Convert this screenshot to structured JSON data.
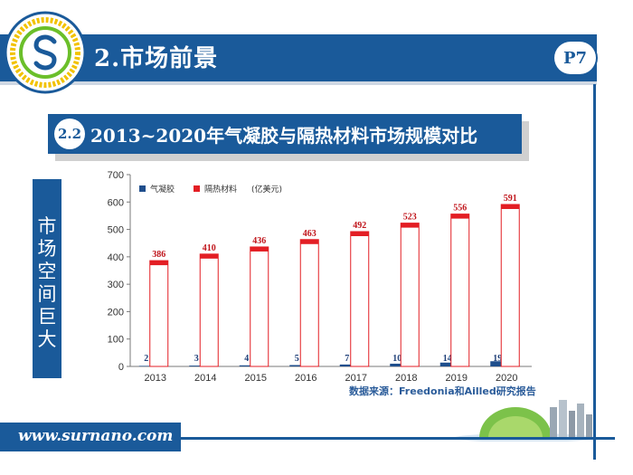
{
  "header": {
    "title": "2.市场前景",
    "page": "P7"
  },
  "subtitle": {
    "badge": "2.2",
    "text": "2013~2020年气凝胶与隔热材料市场规模对比"
  },
  "side_label": [
    "市",
    "场",
    "空",
    "间",
    "巨",
    "大"
  ],
  "source": "数据来源：Freedonia和Ailled研究报告",
  "footer": {
    "website": "www.surnano.com"
  },
  "colors": {
    "brand_blue": "#1a5a9a",
    "aerogel": "#1f4e8c",
    "insulation": "#e31e24"
  },
  "chart_data": {
    "type": "bar",
    "categories": [
      "2013",
      "2014",
      "2015",
      "2016",
      "2017",
      "2018",
      "2019",
      "2020"
    ],
    "series": [
      {
        "name": "气凝胶",
        "values": [
          2,
          3,
          4,
          5,
          7,
          10,
          14,
          19
        ]
      },
      {
        "name": "隔热材料",
        "values": [
          386,
          410,
          436,
          463,
          492,
          523,
          556,
          591
        ]
      }
    ],
    "legend_unit": "(亿美元)",
    "ylim": [
      0,
      700
    ],
    "yticks": [
      0,
      100,
      200,
      300,
      400,
      500,
      600,
      700
    ],
    "legend": "top-left",
    "grid": false
  }
}
